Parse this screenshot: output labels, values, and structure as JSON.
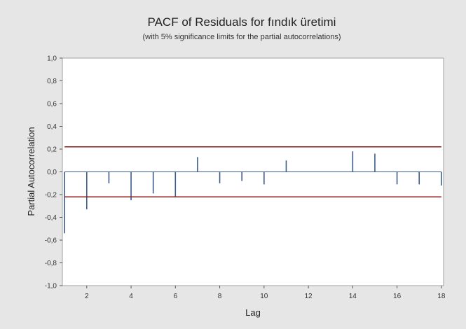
{
  "chart_data": {
    "type": "bar",
    "title": "PACF of Residuals for fındık üretimi",
    "subtitle": "(with 5% significance limits for the partial autocorrelations)",
    "xlabel": "Lag",
    "ylabel": "Partial Autocorrelation",
    "xlim": [
      0.9,
      18.1
    ],
    "ylim": [
      -1.0,
      1.0
    ],
    "x_ticks": [
      2,
      4,
      6,
      8,
      10,
      12,
      14,
      16,
      18
    ],
    "y_ticks": [
      1.0,
      0.8,
      0.6,
      0.4,
      0.2,
      0.0,
      -0.2,
      -0.4,
      -0.6,
      -0.8,
      -1.0
    ],
    "y_tick_labels": [
      "1,0",
      "0,8",
      "0,6",
      "0,4",
      "0,2",
      "0,0",
      "-0,2",
      "-0,4",
      "-0,6",
      "-0,8",
      "-1,0"
    ],
    "lags": [
      1,
      2,
      3,
      4,
      5,
      6,
      7,
      8,
      9,
      10,
      11,
      12,
      13,
      14,
      15,
      16,
      17,
      18
    ],
    "values": [
      -0.54,
      -0.33,
      -0.1,
      -0.25,
      -0.19,
      -0.22,
      0.13,
      -0.1,
      -0.08,
      -0.11,
      0.1,
      0.0,
      0.0,
      0.18,
      0.16,
      -0.11,
      -0.11,
      -0.12
    ],
    "significance_limits": [
      0.22,
      -0.22
    ],
    "grid": false,
    "colors": {
      "bars": "#3b5b8c",
      "limits": "#8b1a1a",
      "zero_line": "#3b5b8c",
      "plot_background": "#ffffff",
      "frame_background": "#e6e6e6"
    }
  }
}
